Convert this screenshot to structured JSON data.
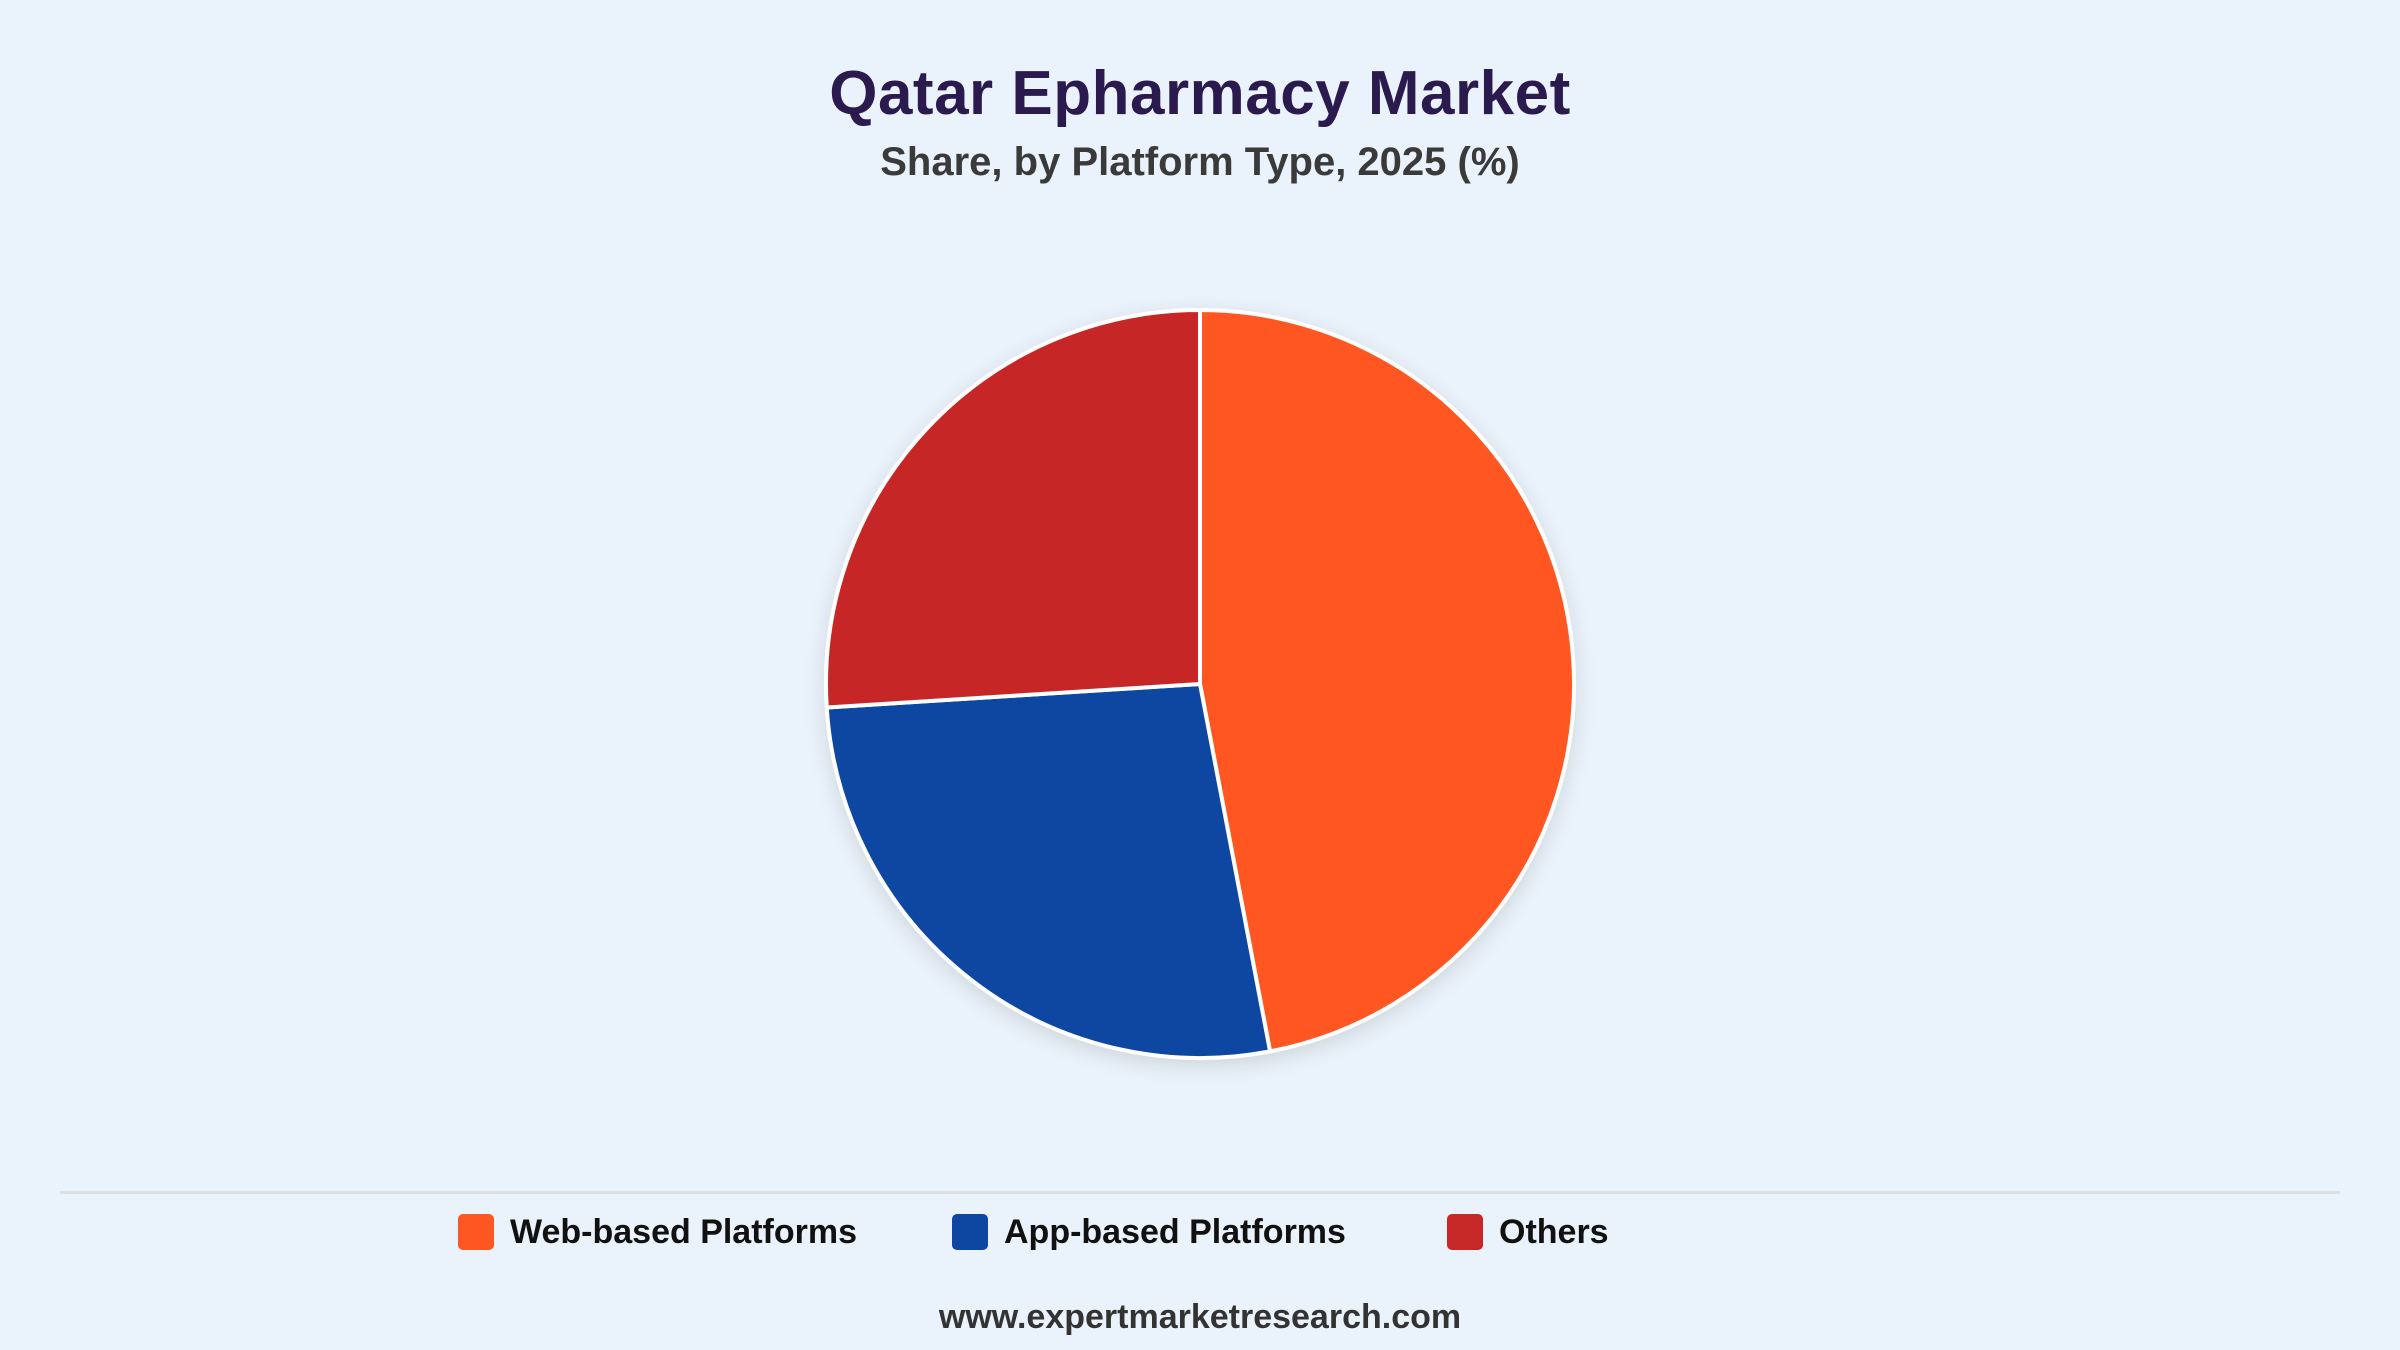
{
  "chart_data": {
    "type": "pie",
    "title": "Qatar Epharmacy Market",
    "subtitle": "Share, by Platform Type, 2025 (%)",
    "categories": [
      "Web-based Platforms",
      "App-based Platforms",
      "Others"
    ],
    "values": [
      47,
      27,
      26
    ],
    "colors": [
      "#ff5722",
      "#0d47a1",
      "#c62828"
    ],
    "legend_position": "bottom",
    "start_angle": "top",
    "direction": "clockwise"
  },
  "footer": {
    "website": "www.expertmarketresearch.com"
  }
}
